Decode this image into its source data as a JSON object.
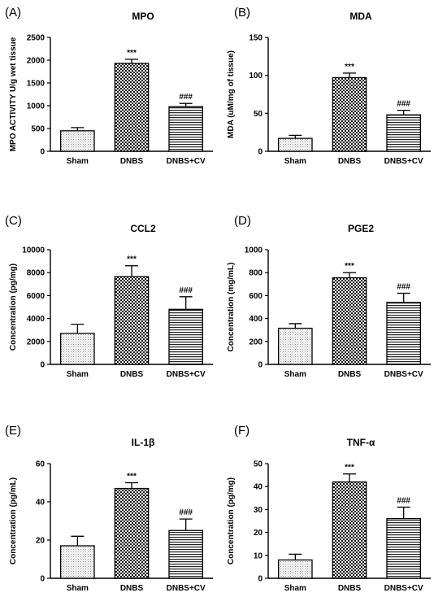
{
  "chart_data": [
    {
      "panel": "(A)",
      "type": "bar",
      "title": "MPO",
      "ylabel": "MPO ACTIVITY U/g wet tissue",
      "xlabel": "",
      "categories": [
        "Sham",
        "DNBS",
        "DNBS+CV"
      ],
      "values": [
        450,
        1930,
        980
      ],
      "errors": [
        70,
        90,
        70
      ],
      "ylim": [
        0,
        2500
      ],
      "yticks": [
        "0",
        "500",
        "1000",
        "1500",
        "2000",
        "2500"
      ],
      "ytick_values": [
        0,
        500,
        1000,
        1500,
        2000,
        2500
      ],
      "annotations": [
        "",
        "***",
        "###"
      ]
    },
    {
      "panel": "(B)",
      "type": "bar",
      "title": "MDA",
      "ylabel": "MDA (uM/mg of tissue)",
      "xlabel": "",
      "categories": [
        "Sham",
        "DNBS",
        "DNBS+CV"
      ],
      "values": [
        17,
        97,
        48
      ],
      "errors": [
        4,
        6,
        6
      ],
      "ylim": [
        0,
        150
      ],
      "yticks": [
        "0",
        "50",
        "100",
        "150"
      ],
      "ytick_values": [
        0,
        50,
        100,
        150
      ],
      "annotations": [
        "",
        "***",
        "###"
      ]
    },
    {
      "panel": "(C)",
      "type": "bar",
      "title": "CCL2",
      "ylabel": "Concentration (pg/mg)",
      "xlabel": "",
      "categories": [
        "Sham",
        "DNBS",
        "DNBS+CV"
      ],
      "values": [
        2700,
        7650,
        4800
      ],
      "errors": [
        800,
        950,
        1100
      ],
      "ylim": [
        0,
        10000
      ],
      "yticks": [
        "0",
        "2000",
        "4000",
        "6000",
        "8000",
        "10000"
      ],
      "ytick_values": [
        0,
        2000,
        4000,
        6000,
        8000,
        10000
      ],
      "annotations": [
        "",
        "***",
        "###"
      ]
    },
    {
      "panel": "(D)",
      "type": "bar",
      "title": "PGE2",
      "ylabel": "Concentration (mg/mL)",
      "xlabel": "",
      "categories": [
        "Sham",
        "DNBS",
        "DNBS+CV"
      ],
      "values": [
        315,
        755,
        540
      ],
      "errors": [
        40,
        45,
        80
      ],
      "ylim": [
        0,
        1000
      ],
      "yticks": [
        "0",
        "200",
        "400",
        "600",
        "800",
        "1000"
      ],
      "ytick_values": [
        0,
        200,
        400,
        600,
        800,
        1000
      ],
      "annotations": [
        "",
        "***",
        "###"
      ]
    },
    {
      "panel": "(E)",
      "type": "bar",
      "title": "IL-1β",
      "ylabel": "Concentration (pg/mL)",
      "xlabel": "",
      "categories": [
        "Sham",
        "DNBS",
        "DNBS+CV"
      ],
      "values": [
        17,
        47,
        25
      ],
      "errors": [
        5,
        3,
        6
      ],
      "ylim": [
        0,
        60
      ],
      "yticks": [
        "0",
        "20",
        "40",
        "60"
      ],
      "ytick_values": [
        0,
        20,
        40,
        60
      ],
      "annotations": [
        "",
        "***",
        "###"
      ]
    },
    {
      "panel": "(F)",
      "type": "bar",
      "title": "TNF-α",
      "ylabel": "Concentration (pg/mg)",
      "xlabel": "",
      "categories": [
        "Sham",
        "DNBS",
        "DNBS+CV"
      ],
      "values": [
        8,
        42,
        26
      ],
      "errors": [
        2.5,
        3.5,
        5
      ],
      "ylim": [
        0,
        50
      ],
      "yticks": [
        "0",
        "10",
        "20",
        "30",
        "40",
        "50"
      ],
      "ytick_values": [
        0,
        10,
        20,
        30,
        40,
        50
      ],
      "annotations": [
        "",
        "***",
        "###"
      ]
    }
  ],
  "style": {
    "axis_color": "#000000",
    "bar_fills": [
      "dotted",
      "checkerboard",
      "horizontal-stripes"
    ]
  }
}
